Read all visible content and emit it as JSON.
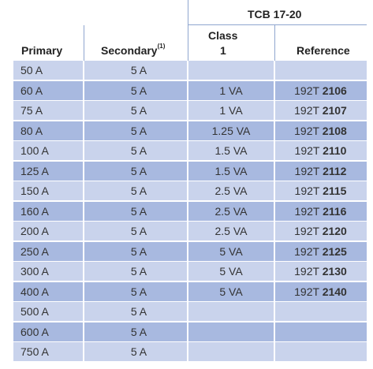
{
  "header": {
    "group_title": "TCB 17-20",
    "col_primary": "Primary",
    "col_secondary": "Secondary",
    "col_secondary_note": "(1)",
    "col_class_line1": "Class",
    "col_class_line2": "1",
    "col_reference": "Reference"
  },
  "colors": {
    "row_light": "#c9d3ec",
    "row_dark": "#a8b9e0",
    "rule": "#8fa6cf"
  },
  "rows": [
    {
      "primary": "50 A",
      "secondary": "5 A",
      "class": "",
      "ref_prefix": "",
      "ref_code": ""
    },
    {
      "primary": "60 A",
      "secondary": "5 A",
      "class": "1 VA",
      "ref_prefix": "192T ",
      "ref_code": "2106"
    },
    {
      "primary": "75 A",
      "secondary": "5 A",
      "class": "1 VA",
      "ref_prefix": "192T ",
      "ref_code": "2107"
    },
    {
      "primary": "80 A",
      "secondary": "5 A",
      "class": "1.25 VA",
      "ref_prefix": "192T ",
      "ref_code": "2108"
    },
    {
      "primary": "100 A",
      "secondary": "5 A",
      "class": "1.5 VA",
      "ref_prefix": "192T ",
      "ref_code": "2110"
    },
    {
      "primary": "125 A",
      "secondary": "5 A",
      "class": "1.5 VA",
      "ref_prefix": "192T ",
      "ref_code": "2112"
    },
    {
      "primary": "150 A",
      "secondary": "5 A",
      "class": "2.5 VA",
      "ref_prefix": "192T ",
      "ref_code": "2115"
    },
    {
      "primary": "160 A",
      "secondary": "5 A",
      "class": "2.5 VA",
      "ref_prefix": "192T ",
      "ref_code": "2116"
    },
    {
      "primary": "200 A",
      "secondary": "5 A",
      "class": "2.5 VA",
      "ref_prefix": "192T ",
      "ref_code": "2120"
    },
    {
      "primary": "250 A",
      "secondary": "5 A",
      "class": "5 VA",
      "ref_prefix": "192T ",
      "ref_code": "2125"
    },
    {
      "primary": "300 A",
      "secondary": "5 A",
      "class": "5 VA",
      "ref_prefix": "192T ",
      "ref_code": "2130"
    },
    {
      "primary": "400 A",
      "secondary": "5 A",
      "class": "5 VA",
      "ref_prefix": "192T ",
      "ref_code": "2140"
    },
    {
      "primary": "500 A",
      "secondary": "5 A",
      "class": "",
      "ref_prefix": "",
      "ref_code": ""
    },
    {
      "primary": "600 A",
      "secondary": "5 A",
      "class": "",
      "ref_prefix": "",
      "ref_code": ""
    },
    {
      "primary": "750 A",
      "secondary": "5 A",
      "class": "",
      "ref_prefix": "",
      "ref_code": ""
    }
  ]
}
